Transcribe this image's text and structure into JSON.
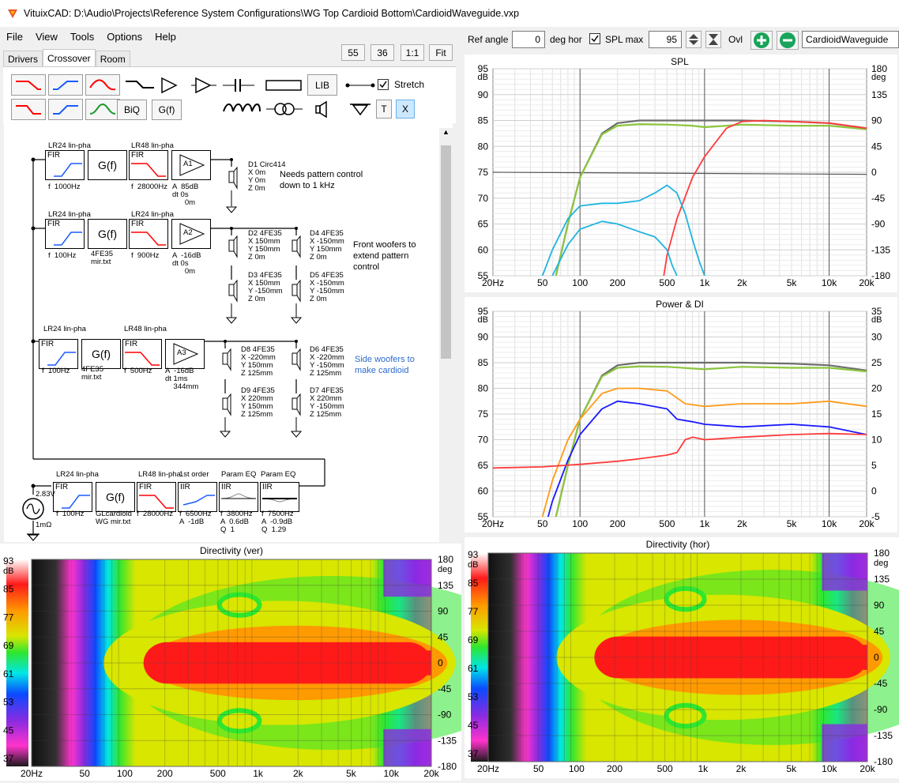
{
  "window": {
    "title": "VituixCAD: D:\\Audio\\Projects\\Reference System Configurations\\WG Top Cardioid Bottom\\CardioidWaveguide.vxp"
  },
  "menu": {
    "file": "File",
    "view": "View",
    "tools": "Tools",
    "options": "Options",
    "help": "Help"
  },
  "zoom_buttons": {
    "b55": "55",
    "b36": "36",
    "b11": "1:1",
    "fit": "Fit"
  },
  "tabs": {
    "drivers": "Drivers",
    "crossover": "Crossover",
    "room": "Room"
  },
  "toolbar": {
    "lib": "LIB",
    "biq": "BiQ",
    "gf": "G(f)",
    "t": "T",
    "x": "X",
    "stretch_label": "Stretch",
    "stretch_checked": true
  },
  "right_toolbar": {
    "ref_angle_label": "Ref angle",
    "ref_angle_value": "0",
    "deg_hor": "deg hor",
    "spl_max_label": "SPL max",
    "spl_max_value": "95",
    "ovl_label": "Ovl",
    "ovl_value": "CardioidWaveguide"
  },
  "schematic": {
    "row1": {
      "lr_a": "LR24 lin-pha",
      "lr_b": "LR48 lin-pha",
      "fir": "FIR",
      "gf": "G(f)",
      "f1": "f  1000Hz",
      "f2": "f  28000Hz",
      "amp": "A1",
      "amp_info": "A  85dB\ndt 0s\n      0m",
      "driver": "D1 Circ414\nX 0m\nY 0m\nZ 0m",
      "note": "Needs pattern control\ndown to 1 kHz"
    },
    "row2": {
      "lr_a": "LR24 lin-pha",
      "lr_b": "LR24 lin-pha",
      "f1": "f  100Hz",
      "gf_file": "4FE35\nmir.txt",
      "f2": "f  900Hz",
      "amp": "A2",
      "amp_info": "A  -16dB\ndt 0s\n      0m",
      "d2": "D2 4FE35\nX 150mm\nY 150mm\nZ 0m",
      "d3": "D3 4FE35\nX 150mm\nY -150mm\nZ 0m",
      "d4": "D4 4FE35\nX -150mm\nY 150mm\nZ 0m",
      "d5": "D5 4FE35\nX -150mm\nY -150mm\nZ 0m",
      "note": "Front woofers to\nextend pattern\ncontrol"
    },
    "row3": {
      "lr_a": "LR24 lin-pha",
      "lr_b": "LR48 lin-pha",
      "f1": "f  100Hz",
      "gf_file": "4FE35\nmir.txt",
      "f2": "f  500Hz",
      "amp": "A3",
      "amp_info": "A  -16dB\ndt 1ms\n    344mm",
      "d8": "D8 4FE35\nX -220mm\nY 150mm\nZ 125mm",
      "d9": "D9 4FE35\nX 220mm\nY 150mm\nZ 125mm",
      "d6": "D6 4FE35\nX -220mm\nY -150mm\nZ 125mm",
      "d7": "D7 4FE35\nX 220mm\nY -150mm\nZ 125mm",
      "note": "Side woofers to\nmake cardioid"
    },
    "row4": {
      "lr_a": "LR24 lin-pha",
      "lr_b": "LR48 lin-pha",
      "first": "1st order",
      "peq1": "Param EQ",
      "peq2": "Param EQ",
      "fir": "FIR",
      "iir": "IIR",
      "src": "2.83V",
      "res": "1mΩ",
      "f1": "f  100Hz",
      "gf_file": "GLcardioid\nWG mir.txt",
      "f2": "f  28000Hz",
      "f3": "f  6500Hz\nA  -1dB",
      "f4": "f  3800Hz\nA  0.6dB\nQ  1",
      "f5": "f  7500Hz\nA  -0.9dB\nQ  1.29"
    }
  },
  "colors": {
    "spl_gray": "#6d6d6d",
    "spl_green": "#8cc63f",
    "spl_red": "#ff3b3b",
    "spl_cyan": "#1fb4e0",
    "orange": "#ff9a1a",
    "blue": "#1a1aff"
  },
  "chart_data": [
    {
      "type": "line",
      "title": "SPL",
      "ylabel": "dB",
      "y2label": "deg",
      "ylim": [
        55,
        95
      ],
      "y2lim": [
        -180,
        180
      ],
      "xscale": "log",
      "xlim": [
        20,
        20000
      ],
      "xticks": [
        "20Hz",
        "50",
        "100",
        "200",
        "500",
        "1k",
        "2k",
        "5k",
        "10k",
        "20k"
      ],
      "yticks": [
        "95",
        "90",
        "85",
        "80",
        "75",
        "70",
        "65",
        "60",
        "55"
      ],
      "y2ticks": [
        "180",
        "135",
        "90",
        "45",
        "0",
        "-45",
        "-90",
        "-135",
        "-180"
      ],
      "series": [
        {
          "color": "#6d6d6d",
          "x": [
            20,
            40,
            60,
            80,
            100,
            150,
            200,
            300,
            500,
            1000,
            2000,
            5000,
            10000,
            20000
          ],
          "y": [
            20,
            36,
            52,
            65,
            74,
            82.5,
            84.5,
            85,
            85,
            85,
            85,
            84.8,
            84.5,
            83.5
          ]
        },
        {
          "color": "#8cc63f",
          "x": [
            20,
            40,
            60,
            80,
            100,
            150,
            200,
            300,
            500,
            800,
            1000,
            1500,
            2000,
            5000,
            10000,
            20000
          ],
          "y": [
            20,
            36,
            52,
            65,
            74,
            82.3,
            84,
            84.3,
            84.2,
            84,
            83.7,
            84,
            84.2,
            84,
            84,
            83.3
          ]
        },
        {
          "color": "#ff3b3b",
          "x": [
            450,
            500,
            600,
            800,
            1000,
            1500,
            2000,
            3000,
            5000,
            10000,
            20000
          ],
          "y": [
            52,
            59,
            66,
            74,
            78,
            83.5,
            84.8,
            85,
            84.8,
            84.5,
            83.5
          ]
        },
        {
          "color": "#1fb4e0",
          "x": [
            50,
            60,
            80,
            100,
            150,
            200,
            300,
            400,
            500,
            600,
            700,
            800,
            900,
            1000
          ],
          "y": [
            55,
            60,
            66,
            68.5,
            69,
            69,
            69.5,
            71,
            72.5,
            71,
            67,
            62,
            58,
            55
          ]
        },
        {
          "color": "#1fb4e0",
          "x": [
            50,
            60,
            80,
            100,
            150,
            200,
            300,
            400,
            500,
            550,
            600
          ],
          "y": [
            50,
            55,
            61,
            64,
            65.5,
            65,
            63.5,
            62.5,
            60,
            57,
            55
          ]
        }
      ]
    },
    {
      "type": "line",
      "title": "Power & DI",
      "ylabel": "dB",
      "y2label": "dB",
      "ylim": [
        55,
        95
      ],
      "y2lim": [
        -5,
        35
      ],
      "xscale": "log",
      "xlim": [
        20,
        20000
      ],
      "xticks": [
        "20Hz",
        "50",
        "100",
        "200",
        "500",
        "1k",
        "2k",
        "5k",
        "10k",
        "20k"
      ],
      "yticks": [
        "95",
        "90",
        "85",
        "80",
        "75",
        "70",
        "65",
        "60",
        "55"
      ],
      "y2ticks": [
        "35",
        "30",
        "25",
        "20",
        "15",
        "10",
        "5",
        "0",
        "-5"
      ],
      "series": [
        {
          "color": "#6d6d6d",
          "x": [
            20,
            40,
            60,
            80,
            100,
            150,
            200,
            300,
            500,
            1000,
            2000,
            5000,
            10000,
            20000
          ],
          "y": [
            20,
            36,
            52,
            65,
            74,
            82.5,
            84.5,
            85,
            85,
            85,
            85,
            84.8,
            84.5,
            83.5
          ]
        },
        {
          "color": "#8cc63f",
          "x": [
            20,
            40,
            60,
            80,
            100,
            150,
            200,
            300,
            500,
            1000,
            2000,
            5000,
            10000,
            20000
          ],
          "y": [
            20,
            36,
            52,
            65,
            74,
            82.3,
            84,
            84.3,
            84.2,
            83.7,
            84.2,
            84,
            84,
            83.3
          ]
        },
        {
          "color": "#ff9a1a",
          "x": [
            50,
            60,
            80,
            100,
            150,
            200,
            300,
            500,
            700,
            1000,
            2000,
            5000,
            10000,
            20000
          ],
          "y": [
            55,
            62,
            70,
            74,
            79,
            80,
            80,
            79.5,
            77,
            76.5,
            77,
            77,
            77.5,
            76.5
          ]
        },
        {
          "color": "#1a1aff",
          "x": [
            50,
            60,
            80,
            100,
            150,
            200,
            300,
            500,
            600,
            800,
            1000,
            2000,
            5000,
            10000,
            20000
          ],
          "y": [
            51,
            58,
            66,
            71,
            76,
            77.5,
            77,
            76,
            74,
            73.5,
            73,
            72.5,
            73,
            72.5,
            71
          ]
        },
        {
          "color": "#ff3b3b",
          "x": [
            20,
            50,
            100,
            200,
            300,
            500,
            600,
            700,
            800,
            1000,
            2000,
            5000,
            10000,
            20000
          ],
          "y": [
            64.5,
            64.7,
            65.2,
            65.8,
            66.3,
            67,
            67.5,
            70,
            70.5,
            70,
            70.5,
            71,
            71.2,
            71
          ]
        }
      ]
    },
    {
      "type": "heatmap",
      "title": "Directivity (ver)",
      "ylabel": "dB",
      "y2label": "deg",
      "zticks": [
        "93",
        "85",
        "77",
        "69",
        "61",
        "53",
        "45",
        "37"
      ],
      "y2ticks": [
        "180",
        "135",
        "90",
        "45",
        "0",
        "-45",
        "-90",
        "-135",
        "-180"
      ],
      "xticks": [
        "20Hz",
        "50",
        "100",
        "200",
        "500",
        "1k",
        "2k",
        "5k",
        "10k",
        "20k"
      ]
    },
    {
      "type": "heatmap",
      "title": "Directivity (hor)",
      "ylabel": "dB",
      "y2label": "deg",
      "zticks": [
        "93",
        "85",
        "77",
        "69",
        "61",
        "53",
        "45",
        "37"
      ],
      "y2ticks": [
        "180",
        "135",
        "90",
        "45",
        "0",
        "-45",
        "-90",
        "-135",
        "-180"
      ],
      "xticks": [
        "20Hz",
        "50",
        "100",
        "200",
        "500",
        "1k",
        "2k",
        "5k",
        "10k",
        "20k"
      ]
    }
  ]
}
